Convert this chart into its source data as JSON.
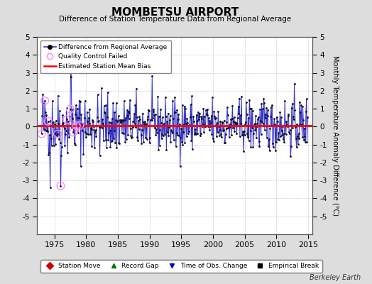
{
  "title": "MOMBETSU AIRPORT",
  "subtitle": "Difference of Station Temperature Data from Regional Average",
  "ylabel": "Monthly Temperature Anomaly Difference (°C)",
  "xlabel_years": [
    1975,
    1980,
    1985,
    1990,
    1995,
    2000,
    2005,
    2010,
    2015
  ],
  "xlim": [
    1972.3,
    2015.7
  ],
  "ylim": [
    -6,
    5
  ],
  "yticks": [
    -5,
    -4,
    -3,
    -2,
    -1,
    0,
    1,
    2,
    3,
    4,
    5
  ],
  "mean_bias": 0.05,
  "bias_color": "#ff0000",
  "line_color": "#3333cc",
  "line_fill_color": "#aaaaff",
  "dot_color": "#111111",
  "qc_color": "#ff88ff",
  "background_color": "#dddddd",
  "plot_background": "#ffffff",
  "legend1_items": [
    "Difference from Regional Average",
    "Quality Control Failed",
    "Estimated Station Mean Bias"
  ],
  "legend2_items": [
    "Station Move",
    "Record Gap",
    "Time of Obs. Change",
    "Empirical Break"
  ],
  "watermark": "Berkeley Earth",
  "seed": 42,
  "start_year": 1973.0,
  "end_year": 2014.92
}
